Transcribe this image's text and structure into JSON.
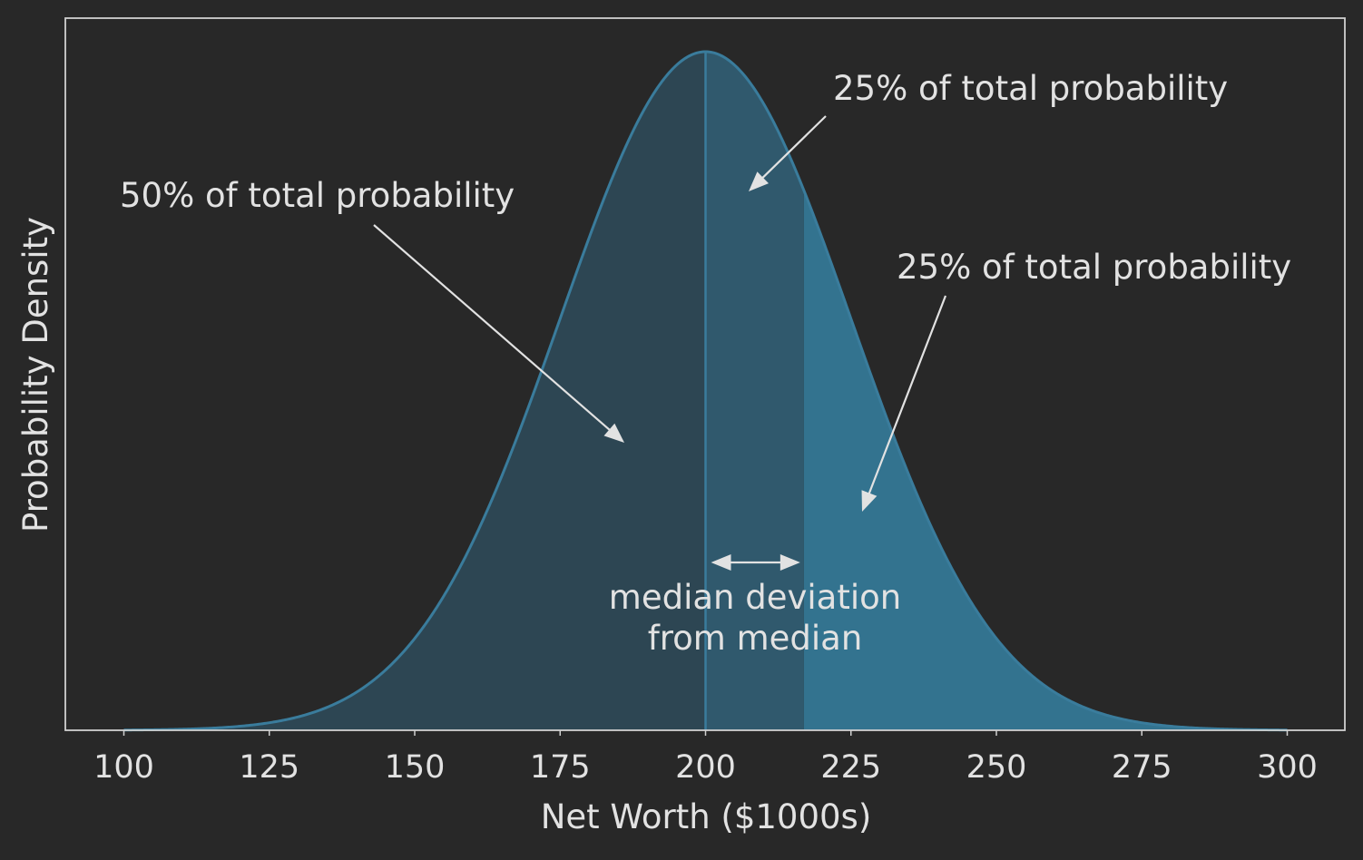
{
  "chart_data": {
    "type": "area",
    "distribution": "normal",
    "mean": 200,
    "std": 25,
    "median": 200,
    "median_deviation_upper": 216.9,
    "xlim": [
      90,
      310
    ],
    "x_ticks": [
      100,
      125,
      150,
      175,
      200,
      225,
      250,
      275,
      300
    ],
    "x_tick_labels": [
      "100",
      "125",
      "150",
      "175",
      "200",
      "225",
      "250",
      "275",
      "300"
    ],
    "xlabel": "Net Worth ($1000s)",
    "ylabel": "Probability Density",
    "y_ticks_shown": false,
    "grid": false,
    "regions": [
      {
        "from": 100,
        "to": 200,
        "probability": 0.5
      },
      {
        "from": 200,
        "to": 216.9,
        "probability": 0.25
      },
      {
        "from": 216.9,
        "to": 300,
        "probability": 0.25
      }
    ],
    "annotations": [
      {
        "text": "50% of total probability",
        "points_to": "region below median"
      },
      {
        "text": "25% of total probability",
        "points_to": "region from median to median + median deviation"
      },
      {
        "text": "25% of total probability",
        "points_to": "region above median + median deviation"
      },
      {
        "text_lines": [
          "median deviation",
          "from median"
        ],
        "marks": "double arrow spanning median to median + median deviation"
      }
    ]
  },
  "colors": {
    "background": "#282828",
    "text": "#e2e2e2",
    "curve": "#3a7c9c",
    "fill_dark": "#2d4653",
    "fill_mid": "#30596d",
    "fill_light": "#33738f",
    "median_line": "#3a7c9c"
  }
}
